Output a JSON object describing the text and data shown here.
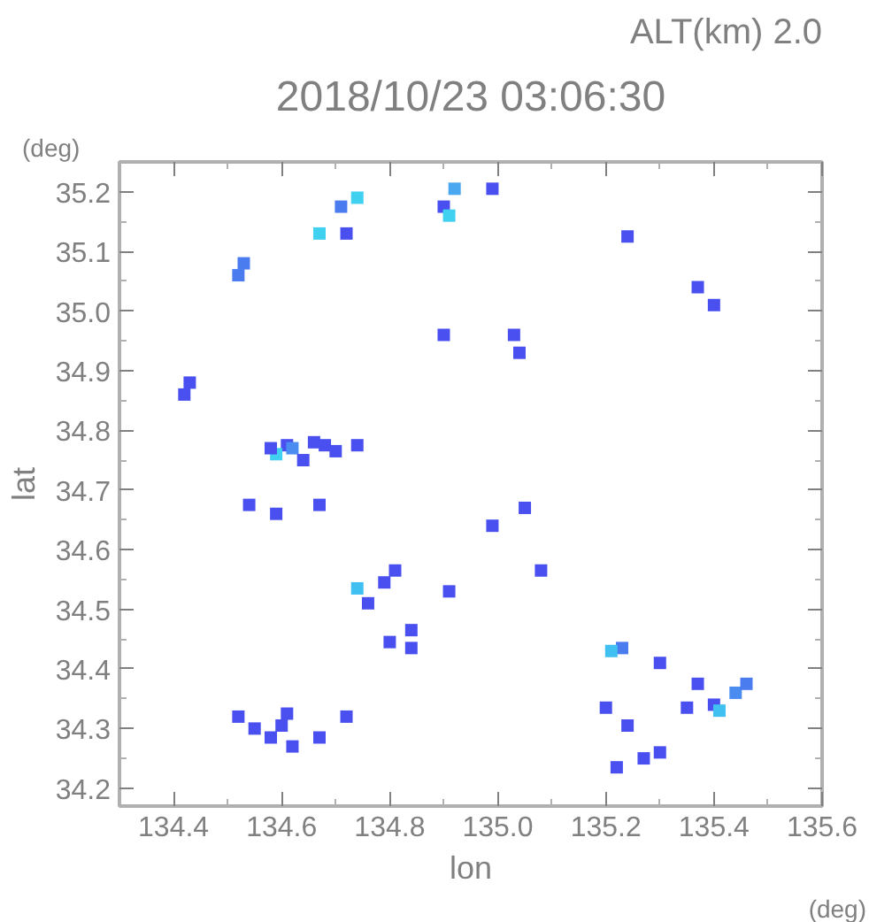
{
  "chart_data": {
    "type": "scatter",
    "title": "2018/10/23 03:06:30",
    "subtitle": "ALT(km) 2.0",
    "xlabel": "lon",
    "ylabel": "lat",
    "annotations": [
      "(deg)",
      "(deg)"
    ],
    "xlim": [
      134.3,
      135.6
    ],
    "xticks": [
      134.4,
      134.6,
      134.8,
      {
        "value": 135.0,
        "label": "135.0"
      },
      135.2,
      135.4,
      135.6
    ],
    "ylim": [
      34.17,
      35.25
    ],
    "yticks": [
      34.2,
      34.3,
      34.4,
      34.5,
      34.6,
      34.7,
      34.8,
      34.9,
      {
        "value": 35.0,
        "label": "35.0"
      },
      35.1,
      35.2
    ],
    "grid": false,
    "marker": "square",
    "x": [
      134.92,
      134.99,
      134.71,
      134.74,
      134.67,
      134.72,
      134.9,
      134.91,
      135.24,
      134.53,
      134.52,
      135.37,
      135.4,
      135.03,
      135.04,
      134.9,
      134.43,
      134.42,
      134.61,
      134.62,
      134.59,
      134.58,
      134.66,
      134.68,
      134.7,
      134.64,
      134.74,
      134.54,
      134.59,
      134.67,
      135.05,
      134.99,
      134.81,
      135.08,
      134.74,
      134.79,
      134.91,
      134.76,
      134.84,
      134.8,
      134.84,
      135.23,
      135.21,
      135.3,
      135.37,
      135.4,
      135.41,
      135.44,
      135.46,
      135.35,
      135.2,
      135.24,
      134.61,
      134.6,
      134.52,
      134.55,
      134.58,
      134.62,
      134.67,
      134.72,
      135.22,
      135.27,
      135.3
    ],
    "values": [
      35.205,
      35.205,
      35.175,
      35.19,
      35.13,
      35.13,
      35.175,
      35.16,
      35.125,
      35.08,
      35.06,
      35.04,
      35.01,
      34.96,
      34.93,
      34.96,
      34.88,
      34.86,
      34.775,
      34.77,
      34.76,
      34.77,
      34.78,
      34.775,
      34.765,
      34.75,
      34.775,
      34.675,
      34.66,
      34.675,
      34.67,
      34.64,
      34.565,
      34.565,
      34.535,
      34.545,
      34.53,
      34.51,
      34.465,
      34.445,
      34.435,
      34.435,
      34.43,
      34.41,
      34.375,
      34.34,
      34.33,
      34.36,
      34.375,
      34.335,
      34.335,
      34.305,
      34.325,
      34.305,
      34.32,
      34.3,
      34.285,
      34.27,
      34.285,
      34.32,
      34.235,
      34.25,
      34.26
    ],
    "colors": [
      "#4aa8f0",
      "#4a50f0",
      "#4a7cf0",
      "#40d0f0",
      "#40d0f0",
      "#4a50f0",
      "#4a50f0",
      "#40d0f0",
      "#4a50f0",
      "#4a7cf0",
      "#4a7cf0",
      "#4a50f0",
      "#4a50f0",
      "#4a50f0",
      "#4a50f0",
      "#4a50f0",
      "#4a50f0",
      "#4a50f0",
      "#4a50f0",
      "#4a8cf0",
      "#40d0f0",
      "#4a50f0",
      "#4a50f0",
      "#4a50f0",
      "#4a50f0",
      "#4a50f0",
      "#4a50f0",
      "#4a50f0",
      "#4a50f0",
      "#4a50f0",
      "#4a50f0",
      "#4a50f0",
      "#4a50f0",
      "#4a50f0",
      "#40c0f0",
      "#4a50f0",
      "#4a50f0",
      "#4a50f0",
      "#4a50f0",
      "#4a50f0",
      "#4a50f0",
      "#4a7cf0",
      "#40c0f0",
      "#4a50f0",
      "#4a50f0",
      "#4a50f0",
      "#40c0f0",
      "#4a8cf0",
      "#4a7cf0",
      "#4a50f0",
      "#4a50f0",
      "#4a50f0",
      "#4a50f0",
      "#4a50f0",
      "#4a50f0",
      "#4a50f0",
      "#4a50f0",
      "#4a50f0",
      "#4a50f0",
      "#4a50f0",
      "#4a50f0",
      "#4a50f0",
      "#4a50f0"
    ]
  }
}
